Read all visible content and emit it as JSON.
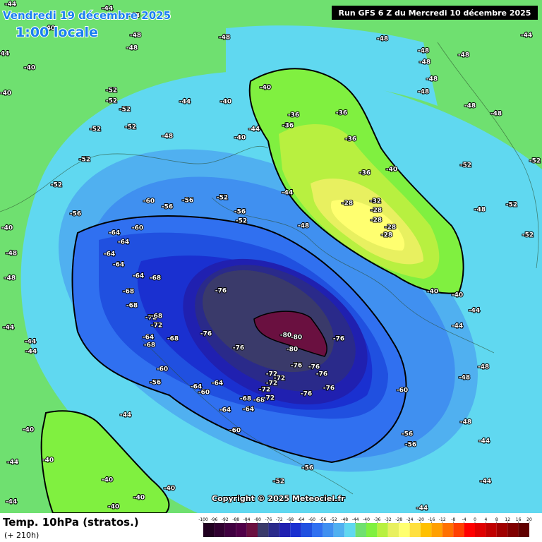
{
  "header": {
    "date": "Vendredi 19 décembre 2025",
    "time": "1:00 locale",
    "run": "Run GFS 6 Z du Mercredi 10 décembre 2025"
  },
  "footer": {
    "title": "Temp. 10hPa (stratos.)",
    "subtitle": "(+ 210h)",
    "copyright": "Copyright © 2025 Meteociel.fr"
  },
  "colorbar": {
    "ticks": [
      -100,
      -96,
      -92,
      -88,
      -84,
      -80,
      -76,
      -72,
      -68,
      -64,
      -60,
      -56,
      -52,
      -48,
      -44,
      -40,
      -36,
      -32,
      -28,
      -24,
      -20,
      -16,
      -12,
      -8,
      -4,
      0,
      4,
      8,
      12,
      16,
      20
    ],
    "colors": [
      "#200020",
      "#300030",
      "#400040",
      "#500048",
      "#6a1040",
      "#3a3a6a",
      "#2a2a8a",
      "#2020b0",
      "#1a30d0",
      "#2050e0",
      "#3070f0",
      "#4090f0",
      "#50b0f0",
      "#60d8f0",
      "#70e070",
      "#80f040",
      "#b8f040",
      "#e8f060",
      "#ffff70",
      "#ffe040",
      "#ffc000",
      "#ffa000",
      "#ff7000",
      "#ff4000",
      "#ff0000",
      "#e00000",
      "#c00000",
      "#a00000",
      "#800000",
      "#600000"
    ]
  },
  "contour_labels": [
    -44,
    -44,
    -48,
    -40,
    -40,
    -40,
    -44,
    -48,
    -48,
    -52,
    -52,
    -52,
    -52,
    -52,
    -48,
    -44,
    -40,
    -48,
    -40,
    -36,
    -36,
    -36,
    -36,
    -36,
    -40,
    -28,
    -32,
    -28,
    -28,
    -28,
    -28,
    -40,
    -40,
    -48,
    -48,
    -48,
    -48,
    -48,
    -48,
    -48,
    -44,
    -48,
    -52,
    -52,
    -52,
    -52,
    -48,
    -44,
    -44,
    -48,
    -48,
    -60,
    -56,
    -56,
    -48,
    -44,
    -44,
    -44,
    -56,
    -52,
    -60,
    -64,
    -64,
    -64,
    -64,
    -60,
    -56,
    -60,
    -68,
    -68,
    -64,
    -72,
    -68,
    -72,
    -68,
    -68,
    -64,
    -68,
    -64,
    -64,
    -64,
    -64,
    -60,
    -60,
    -56,
    -56,
    -56,
    -52,
    -52,
    -76,
    -76,
    -76,
    -80,
    -80,
    -80,
    -76,
    -76,
    -76,
    -76,
    -76,
    -76,
    -72,
    -72,
    -72,
    -72,
    -68,
    -72,
    -68,
    -52,
    -56,
    -48,
    -44,
    -44,
    -40,
    -52,
    -40,
    -40,
    -40,
    -40,
    -40,
    -40,
    -44,
    -44,
    -44,
    -44,
    -44,
    -44,
    -40,
    -48,
    -48
  ]
}
